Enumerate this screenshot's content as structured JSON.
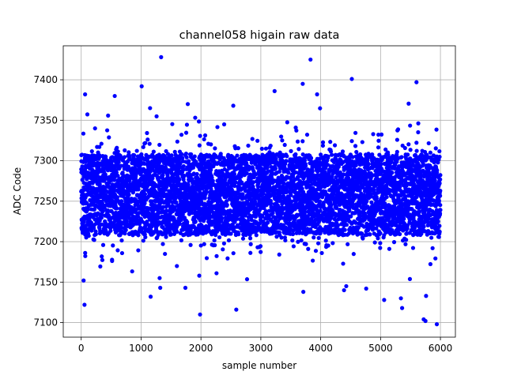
{
  "chart_data": {
    "type": "scatter",
    "title": "channel058 higain raw data",
    "xlabel": "sample number",
    "ylabel": "ADC Code",
    "xlim": [
      -300,
      6250
    ],
    "ylim": [
      7082,
      7442
    ],
    "xticks": [
      0,
      1000,
      2000,
      3000,
      4000,
      5000,
      6000
    ],
    "yticks": [
      7100,
      7150,
      7200,
      7250,
      7300,
      7350,
      7400
    ],
    "grid": true,
    "marker_color": "#0000ff",
    "series": [
      {
        "n_points": 6000,
        "x_range": [
          0,
          5999
        ],
        "y_center": 7258,
        "y_core_band": [
          7210,
          7310
        ],
        "outliers": [
          {
            "x": 55,
            "y": 7122
          },
          {
            "x": 40,
            "y": 7152
          },
          {
            "x": 65,
            "y": 7382
          },
          {
            "x": 560,
            "y": 7380
          },
          {
            "x": 1010,
            "y": 7392
          },
          {
            "x": 1150,
            "y": 7365
          },
          {
            "x": 1160,
            "y": 7132
          },
          {
            "x": 1335,
            "y": 7428
          },
          {
            "x": 1320,
            "y": 7143
          },
          {
            "x": 1310,
            "y": 7155
          },
          {
            "x": 1780,
            "y": 7370
          },
          {
            "x": 1740,
            "y": 7143
          },
          {
            "x": 1985,
            "y": 7110
          },
          {
            "x": 2540,
            "y": 7368
          },
          {
            "x": 2590,
            "y": 7116
          },
          {
            "x": 3230,
            "y": 7386
          },
          {
            "x": 3700,
            "y": 7395
          },
          {
            "x": 3710,
            "y": 7138
          },
          {
            "x": 3830,
            "y": 7425
          },
          {
            "x": 3940,
            "y": 7382
          },
          {
            "x": 4390,
            "y": 7140
          },
          {
            "x": 4520,
            "y": 7401
          },
          {
            "x": 4760,
            "y": 7142
          },
          {
            "x": 5060,
            "y": 7128
          },
          {
            "x": 5360,
            "y": 7118
          },
          {
            "x": 5340,
            "y": 7130
          },
          {
            "x": 5600,
            "y": 7397
          },
          {
            "x": 5720,
            "y": 7104
          },
          {
            "x": 5750,
            "y": 7102
          },
          {
            "x": 5760,
            "y": 7133
          },
          {
            "x": 5940,
            "y": 7098
          }
        ]
      }
    ]
  }
}
